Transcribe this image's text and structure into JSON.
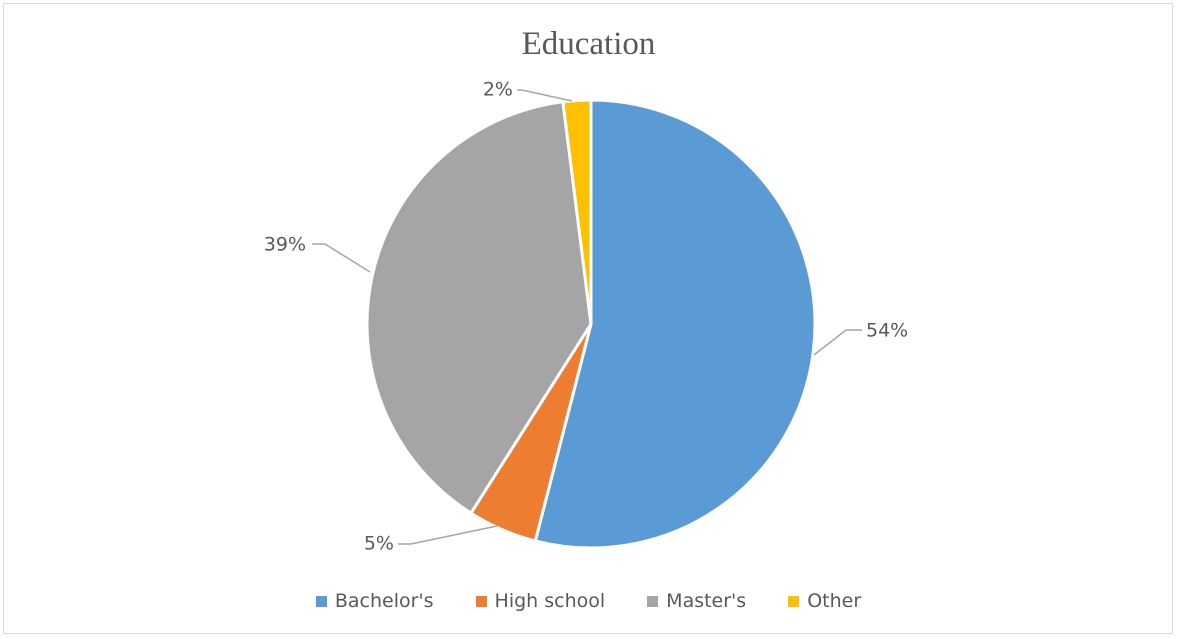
{
  "chart_data": {
    "type": "pie",
    "title": "Education",
    "categories": [
      "Bachelor's",
      "High school",
      "Master's",
      "Other"
    ],
    "values": [
      54,
      5,
      39,
      2
    ],
    "data_labels": [
      "54%",
      "5%",
      "39%",
      "2%"
    ],
    "colors": [
      "#5b9bd5",
      "#ed7d31",
      "#a5a5a5",
      "#ffc000"
    ],
    "legend_position": "bottom"
  },
  "legend": {
    "items": [
      {
        "label": "Bachelor's",
        "color": "#5b9bd5"
      },
      {
        "label": "High school",
        "color": "#ed7d31"
      },
      {
        "label": "Master's",
        "color": "#a5a5a5"
      },
      {
        "label": "Other",
        "color": "#ffc000"
      }
    ]
  }
}
